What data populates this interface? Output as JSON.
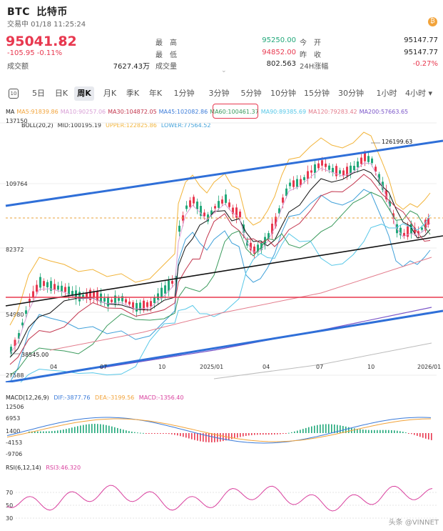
{
  "header": {
    "symbol": "BTC",
    "name": "比特币",
    "status": "交易中 01/18 11:25:24",
    "coin_icon": "₿",
    "price": "95041.82",
    "price_arrow": "↓",
    "change": "-105.95  -0.11%",
    "turnover_label": "成交额",
    "turnover_value": "7627.43万",
    "high_label": "最　高",
    "high_value": "95250.00",
    "low_label": "最　低",
    "low_value": "94852.00",
    "volume_label": "成交量",
    "volume_value": "802.563",
    "open_label": "今　开",
    "open_value": "95147.77",
    "prev_close_label": "昨　收",
    "prev_close_value": "95147.77",
    "change24h_label": "24H涨幅",
    "change24h_value": "-0.27%",
    "handle": "⌄"
  },
  "tabs": {
    "settings": "10",
    "items": [
      "5日",
      "日K",
      "周K",
      "月K",
      "季K",
      "年K",
      "1分钟",
      "3分钟",
      "5分钟",
      "10分钟",
      "15分钟",
      "30分钟",
      "1小时",
      "4小时 ▾"
    ]
  },
  "indicators": {
    "ma_prefix": "MA",
    "ma_items": [
      {
        "text": "MA5:91839.86",
        "color": "#f2a33a"
      },
      {
        "text": "MA10:90257.06",
        "color": "#d9a0d6"
      },
      {
        "text": "MA30:104872.05",
        "color": "#c2344c"
      },
      {
        "text": "MA45:102082.86",
        "color": "#3b7bd9"
      },
      {
        "text": "MA60:100461.37",
        "color": "#3a9a5c"
      },
      {
        "text": "MA90:89385.69",
        "color": "#58c8e8"
      },
      {
        "text": "MA120:79283.42",
        "color": "#e37c8c"
      },
      {
        "text": "MA200:57663.65",
        "color": "#7a55c8"
      }
    ],
    "boll_prefix": "BOLL(20,2)",
    "boll_items": [
      {
        "text": "MID:100195.19",
        "color": "#333"
      },
      {
        "text": "UPPER:122825.86",
        "color": "#f2b43a"
      },
      {
        "text": "LOWER:77564.52",
        "color": "#3fa0d9"
      }
    ]
  },
  "main_chart": {
    "y_labels": [
      "137150",
      "109764",
      "82372",
      "54980",
      "27588"
    ],
    "x_labels": [
      "04",
      "07",
      "10",
      "2025/01",
      "04",
      "07",
      "10",
      "2026/01"
    ],
    "annotation_high": "126199.63",
    "annotation_low": "38545.00"
  },
  "macd": {
    "title": "MACD(12,26,9)",
    "dif": "DIF:-3877.76",
    "dea": "DEA:-3199.56",
    "macd": "MACD:-1356.40",
    "y_labels": [
      "12506",
      "6953",
      "1400",
      "-4153",
      "-9706"
    ]
  },
  "rsi": {
    "title": "RSI(6,12,14)",
    "rsi3": "RSI3:46.320",
    "y_labels": [
      "70",
      "50",
      "30"
    ]
  },
  "watermark": "头条 @VINNET",
  "colors": {
    "down": "#e8384f",
    "up": "#22a87a",
    "accent_blue": "#2f6fd8"
  }
}
